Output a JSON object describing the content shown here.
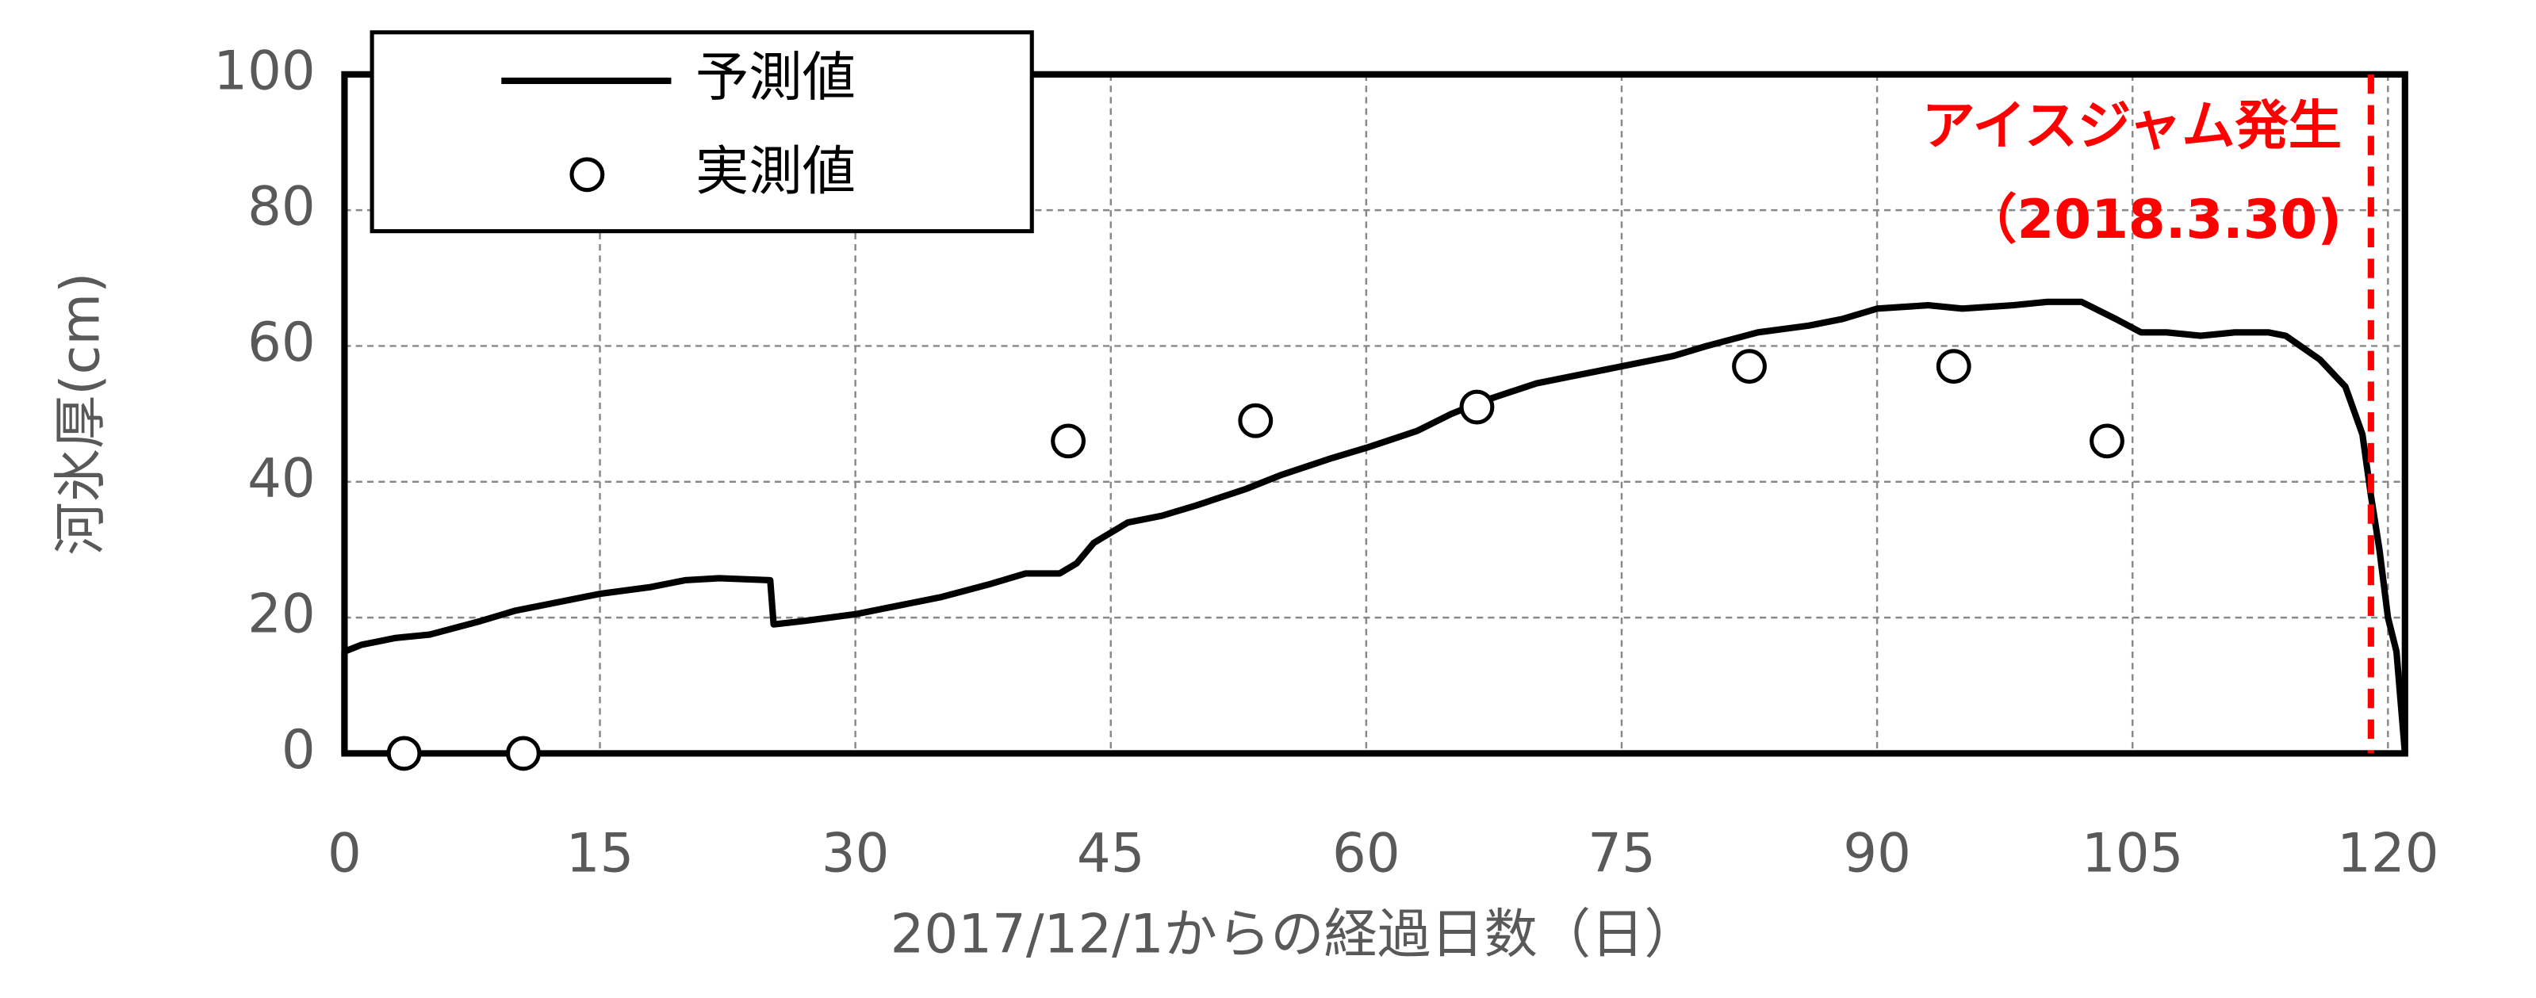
{
  "chart_data": {
    "type": "line",
    "xlabel": "2017/12/1からの経過日数（日）",
    "ylabel": "河氷厚(cm)",
    "xlim": [
      0,
      121
    ],
    "xticks": [
      0,
      15,
      30,
      45,
      60,
      75,
      90,
      105,
      120
    ],
    "ylim": [
      0,
      100
    ],
    "yticks": [
      0,
      20,
      40,
      60,
      80,
      100
    ],
    "grid": true,
    "legend": "upper left",
    "series": [
      {
        "name": "予測値",
        "color": "#000000",
        "style": "line",
        "x": [
          0,
          0,
          1,
          2,
          3,
          5,
          8,
          10,
          12,
          15,
          18,
          20,
          22,
          25,
          25.2,
          27,
          30,
          32,
          35,
          38,
          40,
          42,
          43,
          44,
          46,
          48,
          50,
          53,
          55,
          58,
          60,
          63,
          65,
          67,
          70,
          72,
          75,
          78,
          80,
          83,
          86,
          88,
          90,
          93,
          95,
          98,
          100,
          102,
          104,
          105.5,
          107,
          109,
          111,
          113,
          114,
          116,
          117.5,
          118.5,
          119,
          119.5,
          120,
          120.5,
          121
        ],
        "values": [
          0,
          15,
          16,
          16.5,
          17,
          17.5,
          19.5,
          21,
          22,
          23.5,
          24.5,
          25.5,
          25.8,
          25.5,
          19,
          19.5,
          20.5,
          21.5,
          23,
          25,
          26.5,
          26.5,
          28,
          31,
          34,
          35,
          36.5,
          39,
          41,
          43.5,
          45,
          47.5,
          50,
          52,
          54.5,
          55.5,
          57,
          58.5,
          60,
          62,
          63,
          64,
          65.5,
          66,
          65.5,
          66,
          66.5,
          66.5,
          64,
          62,
          62,
          61.5,
          62,
          62,
          61.5,
          58,
          54,
          47,
          38,
          30,
          20,
          15,
          0
        ]
      },
      {
        "name": "実測値",
        "color": "#000000",
        "style": "marker",
        "x": [
          3.5,
          10.5,
          42.5,
          53.5,
          66.5,
          82.5,
          94.5,
          103.5
        ],
        "values": [
          0,
          0,
          46,
          49,
          51,
          57,
          57,
          46
        ]
      }
    ],
    "event_line": {
      "x": 119,
      "color": "#ff0000",
      "label": [
        "アイスジャム発生",
        "（2018.3.30)"
      ]
    }
  }
}
